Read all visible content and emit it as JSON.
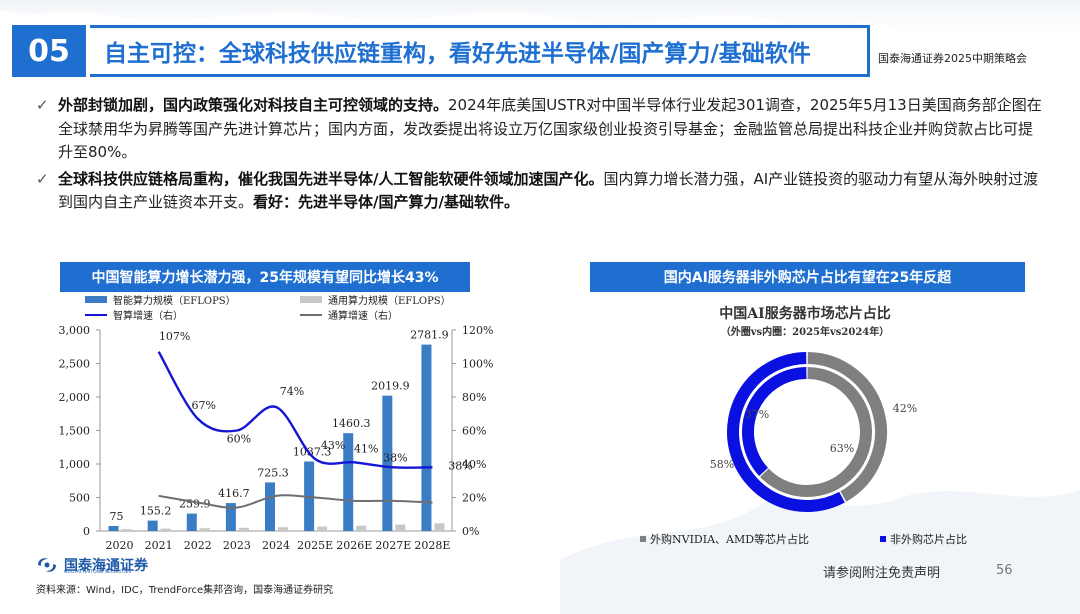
{
  "header": {
    "section_number": "05",
    "title": "自主可控：全球科技供应链重构，看好先进半导体/国产算力/基础软件",
    "meeting": "国泰海通证券2025中期策略会"
  },
  "bullets": [
    {
      "bold": "外部封锁加剧，国内政策强化对科技自主可控领域的支持。",
      "text": "2024年底美国USTR对中国半导体行业发起301调查，2025年5月13日美国商务部企图在全球禁用华为昇腾等国产先进计算芯片；国内方面，发改委提出将设立万亿国家级创业投资引导基金；金融监管总局提出科技企业并购贷款占比可提升至80%。"
    },
    {
      "bold": "全球科技供应链格局重构，催化我国先进半导体/人工智能软硬件领域加速国产化。",
      "text": "国内算力增长潜力强，AI产业链投资的驱动力有望从海外映射过渡到国内自主产业链资本开支。",
      "bold2": "看好：先进半导体/国产算力/基础软件。"
    }
  ],
  "left_banner": "中国智能算力增长潜力强，25年规模有望同比增长43%",
  "right_banner": "国内AI服务器非外购芯片占比有望在25年反超",
  "chart_data": [
    {
      "type": "bar",
      "categories": [
        "2020",
        "2021",
        "2022",
        "2023",
        "2024",
        "2025E",
        "2026E",
        "2027E",
        "2028E"
      ],
      "series": [
        {
          "name": "智能算力规模（EFLOPS）",
          "kind": "bar",
          "axis": "left",
          "color": "#3b7dc4",
          "values": [
            75,
            155.2,
            259.9,
            416.7,
            725.3,
            1037.3,
            1460.3,
            2019.9,
            2781.9
          ],
          "labels": [
            "75",
            "155.2",
            "259.9",
            "416.7",
            "725.3",
            "1037.3",
            "1460.3",
            "2019.9",
            "2781.9"
          ]
        },
        {
          "name": "通用算力规模（EFLOPS）",
          "kind": "bar",
          "axis": "left",
          "color": "#c8c8c8",
          "values": [
            28,
            36,
            42,
            48,
            56,
            66,
            80,
            96,
            115
          ]
        },
        {
          "name": "智算增速（右）",
          "kind": "line",
          "axis": "right",
          "color": "#1616d6",
          "values": [
            null,
            107,
            67,
            60,
            74,
            43,
            41,
            38,
            38
          ],
          "labels": [
            "",
            "107%",
            "67%",
            "60%",
            "74%",
            "43%",
            "41%",
            "38%",
            "38%"
          ]
        },
        {
          "name": "通算增速（右）",
          "kind": "line",
          "axis": "right",
          "color": "#6e6e6e",
          "values": [
            null,
            21,
            17,
            14,
            21,
            20,
            18,
            18,
            17
          ]
        }
      ],
      "ylim": [
        0,
        3000
      ],
      "yticks": [
        "0",
        "500",
        "1,000",
        "1,500",
        "2,000",
        "2,500",
        "3,000"
      ],
      "y2lim": [
        0,
        120
      ],
      "y2ticks": [
        "0%",
        "20%",
        "40%",
        "60%",
        "80%",
        "100%",
        "120%"
      ]
    },
    {
      "type": "pie",
      "title": "中国AI服务器市场芯片占比",
      "subtitle": "（外圈vs内圈：2025年vs2024年）",
      "series": [
        {
          "name": "外圈：2025年",
          "slices": [
            {
              "label": "外购NVIDIA、AMD等芯片占比",
              "value": 42,
              "text": "42%",
              "color": "#7f7f7f"
            },
            {
              "label": "非外购芯片占比",
              "value": 58,
              "text": "58%",
              "color": "#0a10e0"
            }
          ]
        },
        {
          "name": "内圈：2024年",
          "slices": [
            {
              "label": "外购NVIDIA、AMD等芯片占比",
              "value": 63,
              "text": "63%",
              "color": "#7f7f7f"
            },
            {
              "label": "非外购芯片占比",
              "value": 37,
              "text": "37%",
              "color": "#0a10e0"
            }
          ]
        }
      ],
      "legend": [
        "外购NVIDIA、AMD等芯片占比",
        "非外购芯片占比"
      ]
    }
  ],
  "footer": {
    "source": "资料来源：Wind，IDC，TrendForce集邦咨询，国泰海通证券研究",
    "logo_cn": "国泰海通证券",
    "logo_en": "GUOTAI HAITONG SECURITIES",
    "disclaimer": "请参阅附注免责声明",
    "page_number": "56"
  },
  "colors": {
    "brand_blue": "#1e6fd0"
  }
}
